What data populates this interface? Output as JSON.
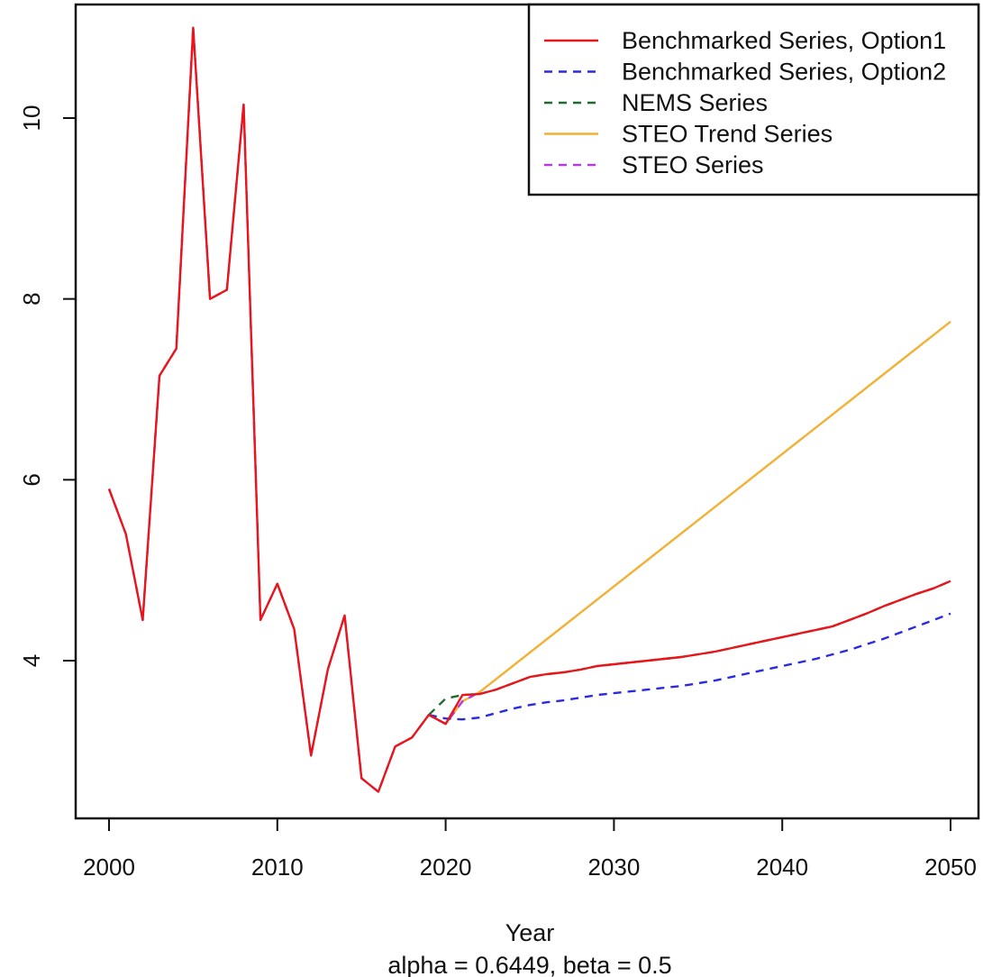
{
  "chart_data": {
    "type": "line",
    "title": "",
    "xlabel": "Year",
    "subtitle": "alpha = 0.6449,  beta = 0.5",
    "ylabel": "",
    "xlim": [
      1998,
      2051
    ],
    "ylim": [
      2.3,
      11.2
    ],
    "x_ticks": [
      2000,
      2010,
      2020,
      2030,
      2040,
      2050
    ],
    "y_ticks": [
      4,
      6,
      8,
      10
    ],
    "grid": false,
    "legend_position": "top-right",
    "series": [
      {
        "name": "Benchmarked Series, Option1",
        "color": "#e8151b",
        "dash": "solid",
        "x": [
          2000,
          2001,
          2002,
          2003,
          2004,
          2005,
          2006,
          2007,
          2008,
          2009,
          2010,
          2011,
          2012,
          2013,
          2014,
          2015,
          2016,
          2017,
          2018,
          2019,
          2020,
          2021,
          2022,
          2023,
          2024,
          2025,
          2026,
          2027,
          2028,
          2029,
          2030,
          2031,
          2032,
          2033,
          2034,
          2035,
          2036,
          2037,
          2038,
          2039,
          2040,
          2041,
          2042,
          2043,
          2044,
          2045,
          2046,
          2047,
          2048,
          2049,
          2050
        ],
        "values": [
          5.9,
          5.4,
          4.45,
          7.15,
          7.45,
          11.0,
          8.0,
          8.1,
          10.15,
          4.45,
          4.85,
          4.35,
          2.95,
          3.9,
          4.5,
          2.7,
          2.55,
          3.05,
          3.15,
          3.4,
          3.3,
          3.62,
          3.63,
          3.68,
          3.75,
          3.82,
          3.85,
          3.87,
          3.9,
          3.94,
          3.96,
          3.98,
          4.0,
          4.02,
          4.04,
          4.07,
          4.1,
          4.14,
          4.18,
          4.22,
          4.26,
          4.3,
          4.34,
          4.38,
          4.45,
          4.52,
          4.6,
          4.67,
          4.74,
          4.8,
          4.88
        ]
      },
      {
        "name": "Benchmarked Series, Option2",
        "color": "#2a2ae0",
        "dash": "dashed",
        "x": [
          2019,
          2020,
          2021,
          2022,
          2023,
          2024,
          2025,
          2026,
          2027,
          2028,
          2029,
          2030,
          2031,
          2032,
          2033,
          2034,
          2035,
          2036,
          2037,
          2038,
          2039,
          2040,
          2041,
          2042,
          2043,
          2044,
          2045,
          2046,
          2047,
          2048,
          2049,
          2050
        ],
        "values": [
          3.4,
          3.36,
          3.35,
          3.37,
          3.42,
          3.47,
          3.51,
          3.54,
          3.56,
          3.59,
          3.62,
          3.64,
          3.66,
          3.68,
          3.7,
          3.72,
          3.75,
          3.78,
          3.82,
          3.86,
          3.9,
          3.94,
          3.98,
          4.02,
          4.07,
          4.12,
          4.18,
          4.24,
          4.31,
          4.38,
          4.45,
          4.52
        ]
      },
      {
        "name": "NEMS Series",
        "color": "#1f6b2e",
        "dash": "dashed",
        "x": [
          2019,
          2020,
          2021,
          2022,
          2023,
          2024,
          2025,
          2026,
          2027,
          2028,
          2029,
          2030,
          2031,
          2032,
          2033,
          2034,
          2035,
          2036,
          2037,
          2038,
          2039,
          2040,
          2041,
          2042,
          2043,
          2044,
          2045,
          2046,
          2047,
          2048,
          2049,
          2050
        ],
        "values": [
          3.4,
          3.58,
          3.62,
          3.63,
          3.68,
          3.75,
          3.82,
          3.85,
          3.87,
          3.9,
          3.94,
          3.96,
          3.98,
          4.0,
          4.02,
          4.04,
          4.07,
          4.1,
          4.14,
          4.18,
          4.22,
          4.26,
          4.3,
          4.34,
          4.38,
          4.45,
          4.52,
          4.6,
          4.67,
          4.74,
          4.8,
          4.88
        ]
      },
      {
        "name": "STEO Trend Series",
        "color": "#f2b035",
        "dash": "solid",
        "x": [
          2020,
          2021,
          2022,
          2050
        ],
        "values": [
          3.3,
          3.55,
          3.65,
          7.75
        ]
      },
      {
        "name": "STEO Series",
        "color": "#b53bdb",
        "dash": "dashed",
        "x": [
          2000,
          2001,
          2002,
          2003,
          2004,
          2005,
          2006,
          2007,
          2008,
          2009,
          2010,
          2011,
          2012,
          2013,
          2014,
          2015,
          2016,
          2017,
          2018,
          2019,
          2020,
          2021,
          2022
        ],
        "values": [
          5.9,
          5.4,
          4.45,
          7.15,
          7.45,
          11.0,
          8.0,
          8.1,
          10.15,
          4.45,
          4.85,
          4.35,
          2.95,
          3.9,
          4.5,
          2.7,
          2.55,
          3.05,
          3.15,
          3.4,
          3.3,
          3.55,
          3.65
        ]
      }
    ]
  }
}
